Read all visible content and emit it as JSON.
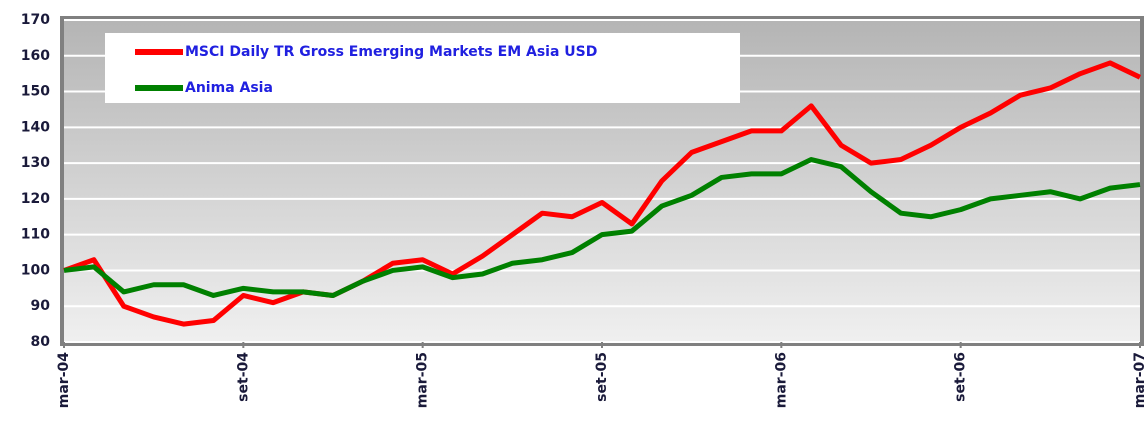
{
  "chart_data": {
    "type": "line",
    "x": [
      0,
      1,
      2,
      3,
      4,
      5,
      6,
      7,
      8,
      9,
      10,
      11,
      12,
      13,
      14,
      15,
      16,
      17,
      18,
      19,
      20,
      21,
      22,
      23,
      24,
      25,
      26,
      27,
      28,
      29,
      30,
      31,
      32,
      33,
      34,
      35,
      36
    ],
    "xlim": [
      0,
      36
    ],
    "xticks": [
      {
        "value": 0,
        "label": "mar-04"
      },
      {
        "value": 6,
        "label": "set-04"
      },
      {
        "value": 12,
        "label": "mar-05"
      },
      {
        "value": 18,
        "label": "set-05"
      },
      {
        "value": 24,
        "label": "mar-06"
      },
      {
        "value": 30,
        "label": "set-06"
      },
      {
        "value": 36,
        "label": "mar-07"
      }
    ],
    "ylim": [
      80,
      170
    ],
    "yticks": [
      80,
      90,
      100,
      110,
      120,
      130,
      140,
      150,
      160,
      170
    ],
    "grid": true,
    "legend": "upper left",
    "series": [
      {
        "name": "MSCI Daily TR Gross Emerging Markets EM Asia USD",
        "color": "#ff0000",
        "values": [
          100,
          103,
          90,
          87,
          85,
          86,
          93,
          91,
          94,
          93,
          97,
          102,
          103,
          99,
          104,
          110,
          116,
          115,
          119,
          113,
          125,
          133,
          136,
          139,
          139,
          146,
          135,
          130,
          131,
          135,
          140,
          144,
          149,
          151,
          155,
          158,
          154
        ]
      },
      {
        "name": "Anima Asia",
        "color": "#008000",
        "values": [
          100,
          101,
          94,
          96,
          96,
          93,
          95,
          94,
          94,
          93,
          97,
          100,
          101,
          98,
          99,
          102,
          103,
          105,
          110,
          111,
          118,
          121,
          126,
          127,
          127,
          131,
          129,
          122,
          116,
          115,
          117,
          120,
          121,
          122,
          120,
          123,
          124
        ]
      }
    ]
  }
}
